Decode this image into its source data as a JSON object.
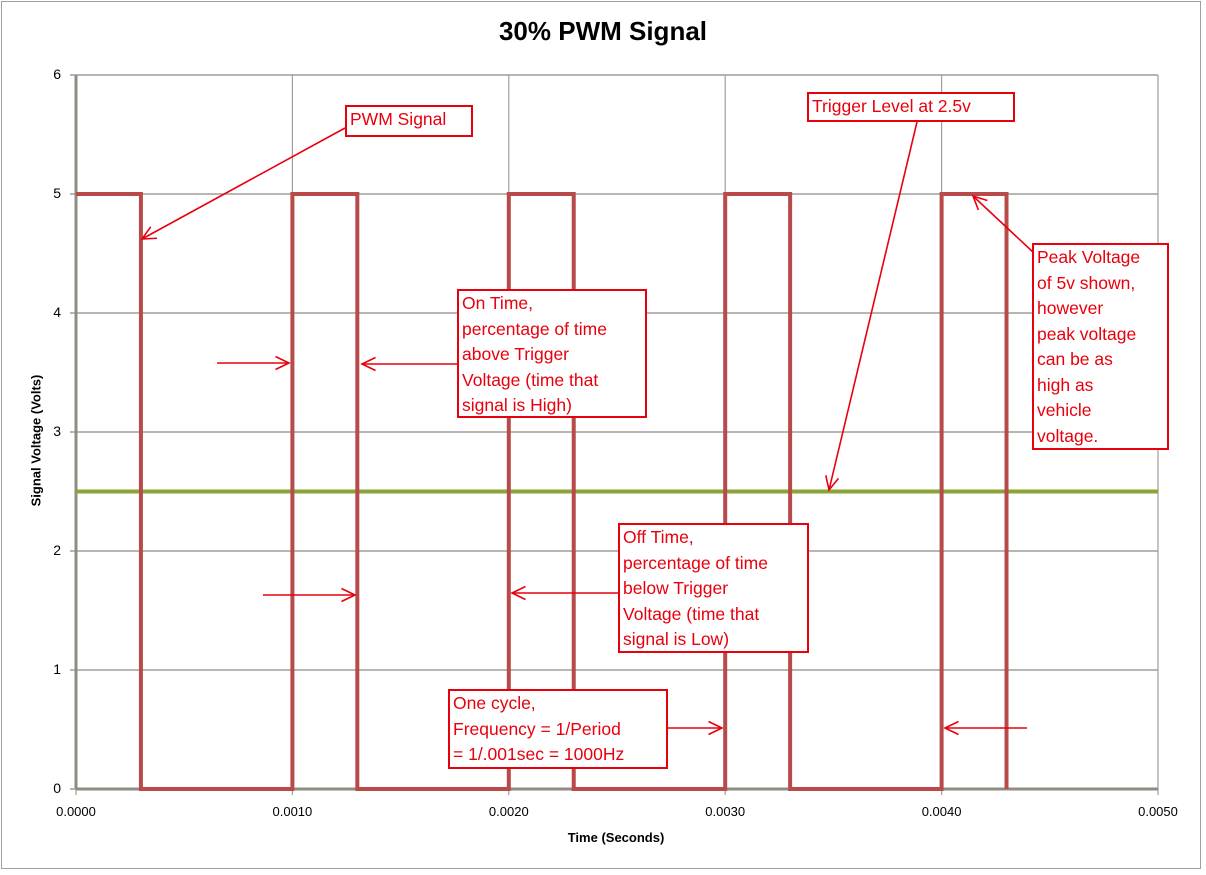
{
  "chart_data": {
    "type": "line",
    "title": "30% PWM Signal",
    "xlabel": "Time (Seconds)",
    "ylabel": "Signal Voltage (Volts)",
    "xlim": [
      0.0,
      0.005
    ],
    "ylim": [
      0,
      6
    ],
    "grid": true,
    "legend": "none",
    "x_ticks": [
      "0.0000",
      "0.0010",
      "0.0020",
      "0.0030",
      "0.0040",
      "0.0050"
    ],
    "y_ticks": [
      "0",
      "1",
      "2",
      "3",
      "4",
      "5",
      "6"
    ],
    "series": [
      {
        "name": "PWM Signal",
        "color": "#b84a4a",
        "x": [
          0.0,
          0.0003,
          0.0003,
          0.001,
          0.001,
          0.0013,
          0.0013,
          0.002,
          0.002,
          0.0023,
          0.0023,
          0.003,
          0.003,
          0.0033,
          0.0033,
          0.004,
          0.004,
          0.0043,
          0.0043
        ],
        "values": [
          5,
          5,
          0,
          0,
          5,
          5,
          0,
          0,
          5,
          5,
          0,
          0,
          5,
          5,
          0,
          0,
          5,
          5,
          0
        ]
      },
      {
        "name": "Trigger Level",
        "color": "#8aa534",
        "x": [
          0.0,
          0.005
        ],
        "values": [
          2.5,
          2.5
        ]
      }
    ],
    "annotations": [
      {
        "id": "pwm",
        "text": "PWM Signal"
      },
      {
        "id": "trigger",
        "text": "Trigger Level at 2.5v"
      },
      {
        "id": "peak",
        "text": "Peak Voltage\nof 5v shown,\nhowever\npeak voltage\ncan be as\nhigh as\nvehicle\nvoltage."
      },
      {
        "id": "on_time",
        "text": "On Time,\npercentage of time\nabove Trigger\nVoltage (time that\nsignal is High)"
      },
      {
        "id": "off_time",
        "text": "Off Time,\npercentage of time\nbelow Trigger\nVoltage (time that\nsignal is Low)"
      },
      {
        "id": "cycle",
        "text": "One cycle,\nFrequency = 1/Period\n= 1/.001sec = 1000Hz"
      }
    ],
    "duty_cycle_percent": 30,
    "frequency_hz": 1000,
    "period_s": 0.001
  },
  "colors": {
    "signal": "#b84a4a",
    "trigger": "#8aa534",
    "annotation": "#e8000c",
    "grid": "#a09e96",
    "axis": "#8f8c82"
  }
}
